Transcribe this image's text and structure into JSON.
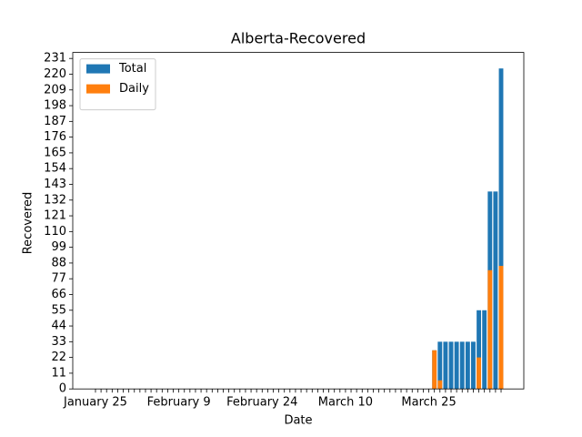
{
  "chart_data": {
    "type": "bar",
    "title": "Alberta-Recovered",
    "xlabel": "Date",
    "ylabel": "Recovered",
    "categories": [
      "January 25",
      null,
      null,
      null,
      null,
      null,
      null,
      null,
      null,
      null,
      null,
      null,
      null,
      null,
      null,
      "February 9",
      null,
      null,
      null,
      null,
      null,
      null,
      null,
      null,
      null,
      null,
      null,
      null,
      null,
      null,
      "February 24",
      null,
      null,
      null,
      null,
      null,
      null,
      null,
      null,
      null,
      null,
      null,
      null,
      null,
      null,
      "March 10",
      null,
      null,
      null,
      null,
      null,
      null,
      null,
      null,
      null,
      null,
      null,
      null,
      null,
      null,
      "March 25",
      null,
      null,
      null,
      null,
      null,
      null,
      null,
      null,
      null,
      null,
      null,
      null,
      null
    ],
    "series": [
      {
        "name": "Total",
        "color": "#1f77b4",
        "values": [
          0,
          0,
          0,
          0,
          0,
          0,
          0,
          0,
          0,
          0,
          0,
          0,
          0,
          0,
          0,
          0,
          0,
          0,
          0,
          0,
          0,
          0,
          0,
          0,
          0,
          0,
          0,
          0,
          0,
          0,
          0,
          0,
          0,
          0,
          0,
          0,
          0,
          0,
          0,
          0,
          0,
          0,
          0,
          0,
          0,
          0,
          0,
          0,
          0,
          0,
          0,
          0,
          0,
          0,
          0,
          0,
          0,
          0,
          0,
          0,
          0,
          27,
          33,
          33,
          33,
          33,
          33,
          33,
          33,
          55,
          55,
          138,
          138,
          224
        ]
      },
      {
        "name": "Daily",
        "color": "#ff7f0e",
        "values": [
          0,
          0,
          0,
          0,
          0,
          0,
          0,
          0,
          0,
          0,
          0,
          0,
          0,
          0,
          0,
          0,
          0,
          0,
          0,
          0,
          0,
          0,
          0,
          0,
          0,
          0,
          0,
          0,
          0,
          0,
          0,
          0,
          0,
          0,
          0,
          0,
          0,
          0,
          0,
          0,
          0,
          0,
          0,
          0,
          0,
          0,
          0,
          0,
          0,
          0,
          0,
          0,
          0,
          0,
          0,
          0,
          0,
          0,
          0,
          0,
          0,
          27,
          6,
          0,
          0,
          0,
          0,
          0,
          0,
          22,
          0,
          83,
          0,
          86
        ]
      }
    ],
    "ylim": [
      0,
      235.2
    ],
    "yticks": [
      0,
      11,
      22,
      33,
      44,
      55,
      66,
      77,
      88,
      99,
      110,
      121,
      132,
      143,
      154,
      165,
      176,
      187,
      198,
      209,
      220,
      231
    ],
    "legend": "upper left"
  }
}
